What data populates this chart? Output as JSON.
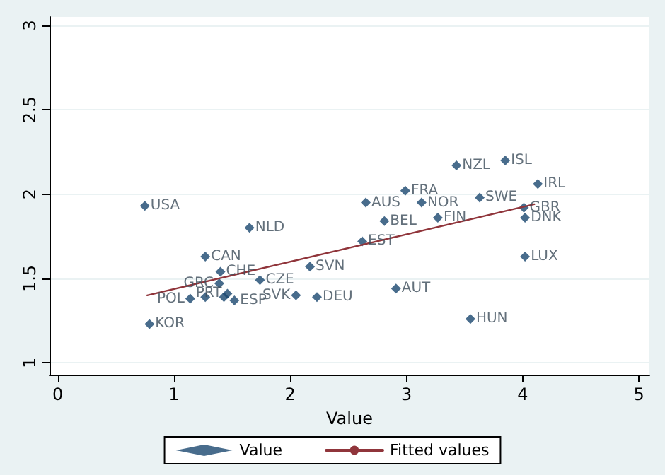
{
  "chart_data": {
    "type": "scatter",
    "xlabel": "Value",
    "xlim": [
      -0.07,
      5.09
    ],
    "ylim": [
      0.93,
      3.05
    ],
    "xticks": [
      0,
      1,
      2,
      3,
      4,
      5
    ],
    "yticks": [
      1,
      1.5,
      2,
      2.5,
      3
    ],
    "grid": "y",
    "legend": "bottom",
    "marker": "diamond",
    "series": [
      {
        "name": "Value",
        "color": "#1a476f",
        "x": [
          0.75,
          0.79,
          1.65,
          1.27,
          1.4,
          1.39,
          1.74,
          1.14,
          1.27,
          1.43,
          1.46,
          1.52,
          2.05,
          2.23,
          2.17,
          2.62,
          2.65,
          2.81,
          2.99,
          3.13,
          3.27,
          2.91,
          3.43,
          3.85,
          3.63,
          4.13,
          4.01,
          4.02,
          4.02,
          3.55
        ],
        "values": [
          1.93,
          1.23,
          1.8,
          1.63,
          1.54,
          1.47,
          1.49,
          1.38,
          1.39,
          1.39,
          1.41,
          1.37,
          1.4,
          1.39,
          1.57,
          1.72,
          1.95,
          1.84,
          2.02,
          1.95,
          1.86,
          1.44,
          2.17,
          2.2,
          1.98,
          2.06,
          1.92,
          1.86,
          1.63,
          1.26
        ]
      },
      {
        "name": "Fitted values",
        "type": "line",
        "color": "#90353b",
        "marker": "none",
        "x": [
          0.77,
          4.1
        ],
        "values": [
          1.4,
          1.94
        ]
      }
    ],
    "annotations": [
      {
        "text": "USA",
        "x": 0.75,
        "y": 1.93
      },
      {
        "text": "KOR",
        "x": 0.79,
        "y": 1.23
      },
      {
        "text": "NLD",
        "x": 1.65,
        "y": 1.8
      },
      {
        "text": "CAN",
        "x": 1.27,
        "y": 1.63
      },
      {
        "text": "CHE",
        "x": 1.4,
        "y": 1.54
      },
      {
        "text": "GRC",
        "x": 1.39,
        "y": 1.47
      },
      {
        "text": "CZE",
        "x": 1.74,
        "y": 1.49
      },
      {
        "text": "POL",
        "x": 1.14,
        "y": 1.38
      },
      {
        "text": "PRT",
        "x": 1.46,
        "y": 1.41
      },
      {
        "text": "ESP",
        "x": 1.52,
        "y": 1.37
      },
      {
        "text": "SVK",
        "x": 2.05,
        "y": 1.4
      },
      {
        "text": "DEU",
        "x": 2.23,
        "y": 1.39
      },
      {
        "text": "SVN",
        "x": 2.17,
        "y": 1.57
      },
      {
        "text": "EST",
        "x": 2.62,
        "y": 1.72
      },
      {
        "text": "AUS",
        "x": 2.65,
        "y": 1.95
      },
      {
        "text": "BEL",
        "x": 2.81,
        "y": 1.84
      },
      {
        "text": "FRA",
        "x": 2.99,
        "y": 2.02
      },
      {
        "text": "NOR",
        "x": 3.13,
        "y": 1.95
      },
      {
        "text": "FIN",
        "x": 3.27,
        "y": 1.86
      },
      {
        "text": "AUT",
        "x": 2.91,
        "y": 1.44
      },
      {
        "text": "NZL",
        "x": 3.43,
        "y": 2.17
      },
      {
        "text": "ISL",
        "x": 3.85,
        "y": 2.2
      },
      {
        "text": "SWE",
        "x": 3.63,
        "y": 1.98
      },
      {
        "text": "IRL",
        "x": 4.13,
        "y": 2.06
      },
      {
        "text": "GBR",
        "x": 4.01,
        "y": 1.92
      },
      {
        "text": "DNK",
        "x": 4.02,
        "y": 1.86
      },
      {
        "text": "LUX",
        "x": 4.02,
        "y": 1.63
      },
      {
        "text": "HUN",
        "x": 3.55,
        "y": 1.26
      }
    ]
  }
}
